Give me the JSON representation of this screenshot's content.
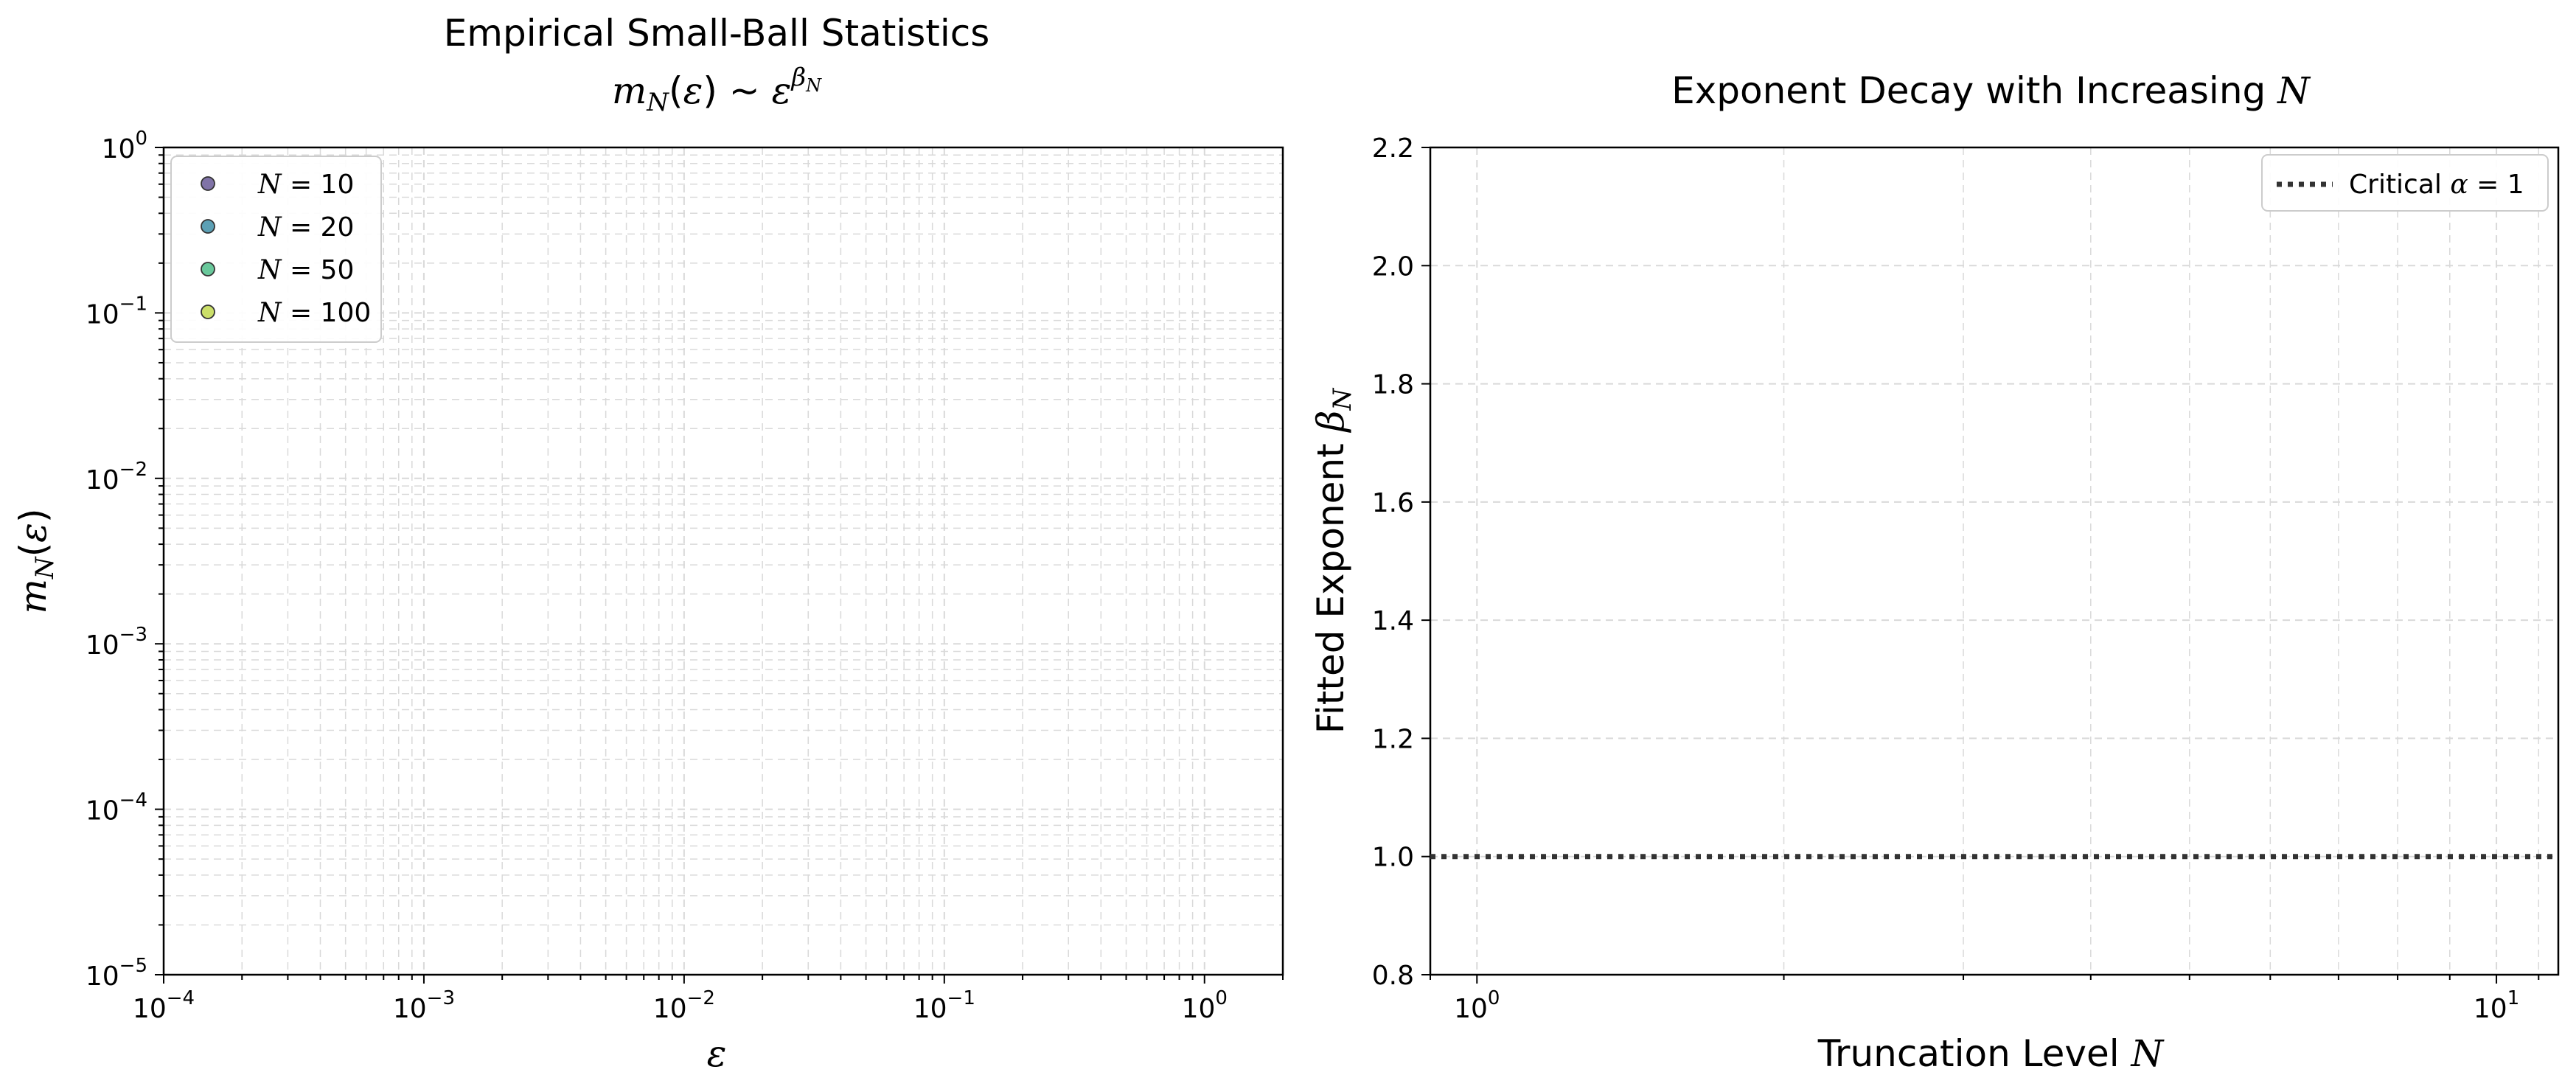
{
  "colors": {
    "N10": "#6a5a98",
    "N20": "#3f8fa8",
    "N50": "#4fbe8a",
    "N100": "#c2d94f",
    "critical_line": "#333333",
    "grid": "#d9d9d9"
  },
  "chart_data": [
    {
      "type": "scatter",
      "title": "Empirical Small-Ball Statistics",
      "title_math": "m_N(ε) ~ ε^{β_N}",
      "xlabel": "ε",
      "ylabel": "m_N(ε)",
      "xscale": "log",
      "yscale": "log",
      "xlim": [
        0.0001,
        2
      ],
      "ylim": [
        1e-05,
        1
      ],
      "x_ticks": [
        {
          "base": "10",
          "exp": "−4"
        },
        {
          "base": "10",
          "exp": "−3"
        },
        {
          "base": "10",
          "exp": "−2"
        },
        {
          "base": "10",
          "exp": "−1"
        },
        {
          "base": "10",
          "exp": "0"
        }
      ],
      "y_ticks": [
        {
          "base": "10",
          "exp": "−5"
        },
        {
          "base": "10",
          "exp": "−4"
        },
        {
          "base": "10",
          "exp": "−3"
        },
        {
          "base": "10",
          "exp": "−2"
        },
        {
          "base": "10",
          "exp": "−1"
        },
        {
          "base": "10",
          "exp": "0"
        }
      ],
      "grid": true,
      "legend_position": "upper-left",
      "series": [
        {
          "name": "N = 10",
          "n_value": "10",
          "color_key": "N10",
          "points": []
        },
        {
          "name": "N = 20",
          "n_value": "20",
          "color_key": "N20",
          "points": []
        },
        {
          "name": "N = 50",
          "n_value": "50",
          "color_key": "N50",
          "points": []
        },
        {
          "name": "N = 100",
          "n_value": "100",
          "color_key": "N100",
          "points": []
        }
      ]
    },
    {
      "type": "line",
      "title": "Exponent Decay with Increasing N",
      "xlabel": "Truncation Level N",
      "ylabel": "Fitted Exponent β_N",
      "xscale": "log",
      "yscale": "linear",
      "xlim": [
        0.9,
        11.5
      ],
      "ylim": [
        0.8,
        2.2
      ],
      "x_ticks": [
        {
          "base": "10",
          "exp": "0"
        },
        {
          "base": "10",
          "exp": "1"
        }
      ],
      "y_ticks": [
        "0.8",
        "1.0",
        "1.2",
        "1.4",
        "1.6",
        "1.8",
        "2.0",
        "2.2"
      ],
      "grid": true,
      "legend_position": "upper-right",
      "series": [
        {
          "name": "Critical α = 1",
          "style": "dotted",
          "y": 1.0,
          "color_key": "critical_line"
        }
      ]
    }
  ]
}
